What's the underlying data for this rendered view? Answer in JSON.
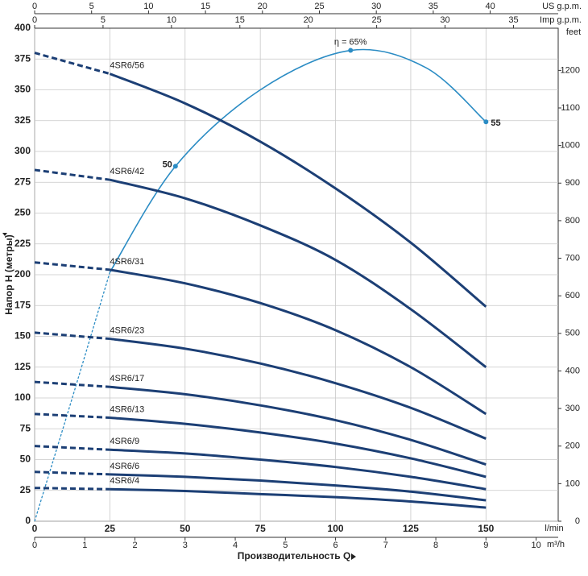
{
  "chart_data": {
    "type": "line",
    "x_label": "Производительность Q",
    "y_label": "Напор H (метры)",
    "x_unit": "l/min",
    "xlim": [
      0,
      174
    ],
    "xticks": [
      0,
      25,
      50,
      75,
      100,
      125,
      150
    ],
    "ylim": [
      0,
      400
    ],
    "yticks": [
      0,
      25,
      50,
      75,
      100,
      125,
      150,
      175,
      200,
      225,
      250,
      275,
      300,
      325,
      350,
      375,
      400
    ],
    "grid": true,
    "x": [
      0,
      25,
      50,
      75,
      100,
      125,
      150
    ],
    "series": [
      {
        "name": "4SR6/56",
        "color": "#1c3f75",
        "values": [
          380,
          363,
          339,
          308,
          270,
          226,
          174
        ]
      },
      {
        "name": "4SR6/42",
        "color": "#1c3f75",
        "values": [
          285,
          277,
          262,
          240,
          212,
          172,
          125
        ]
      },
      {
        "name": "4SR6/31",
        "color": "#1c3f75",
        "values": [
          210,
          204,
          193,
          177,
          155,
          125,
          87
        ]
      },
      {
        "name": "4SR6/23",
        "color": "#1c3f75",
        "values": [
          153,
          148,
          140,
          128,
          112,
          92,
          67
        ]
      },
      {
        "name": "4SR6/17",
        "color": "#1c3f75",
        "values": [
          113,
          109,
          103,
          94,
          82,
          66,
          46
        ]
      },
      {
        "name": "4SR6/13",
        "color": "#1c3f75",
        "values": [
          87,
          84,
          79,
          72,
          63,
          51,
          36
        ]
      },
      {
        "name": "4SR6/9",
        "color": "#1c3f75",
        "values": [
          61,
          58,
          55,
          50,
          44,
          36,
          26
        ]
      },
      {
        "name": "4SR6/6",
        "color": "#1c3f75",
        "values": [
          40,
          38,
          36,
          33,
          29,
          24,
          17
        ]
      },
      {
        "name": "4SR6/4",
        "color": "#1c3f75",
        "values": [
          27,
          26,
          24.5,
          22,
          19.5,
          16,
          11
        ]
      }
    ],
    "efficiency": {
      "color": "#2b8cc4",
      "x": [
        0,
        12.5,
        25,
        46.8,
        75,
        105,
        130,
        150
      ],
      "values": [
        0,
        100,
        202,
        288,
        350,
        382,
        368,
        324
      ],
      "points": [
        {
          "x": 46.8,
          "y": 288,
          "label": "50"
        },
        {
          "x": 105,
          "y": 382,
          "label": "η = 65%"
        },
        {
          "x": 150,
          "y": 324,
          "label": "55"
        }
      ]
    },
    "m3h_axis": {
      "label": "m³/h",
      "lim": [
        0,
        10.44
      ],
      "ticks": [
        0,
        1,
        2,
        3,
        4,
        5,
        6,
        7,
        8,
        9,
        10
      ]
    },
    "us_gpm_axis": {
      "label": "US g.p.m.",
      "lim": [
        0,
        45.97
      ],
      "ticks": [
        0,
        5,
        10,
        15,
        20,
        25,
        30,
        35,
        40
      ]
    },
    "imp_gpm_axis": {
      "label": "Imp g.p.m.",
      "lim": [
        0,
        38.27
      ],
      "ticks": [
        0,
        5,
        10,
        15,
        20,
        25,
        30,
        35
      ]
    },
    "feet_axis": {
      "label": "feet",
      "lim": [
        0,
        1312.3
      ],
      "ticks": [
        0,
        100,
        200,
        300,
        400,
        500,
        600,
        700,
        800,
        900,
        1000,
        1100,
        1200
      ]
    }
  }
}
